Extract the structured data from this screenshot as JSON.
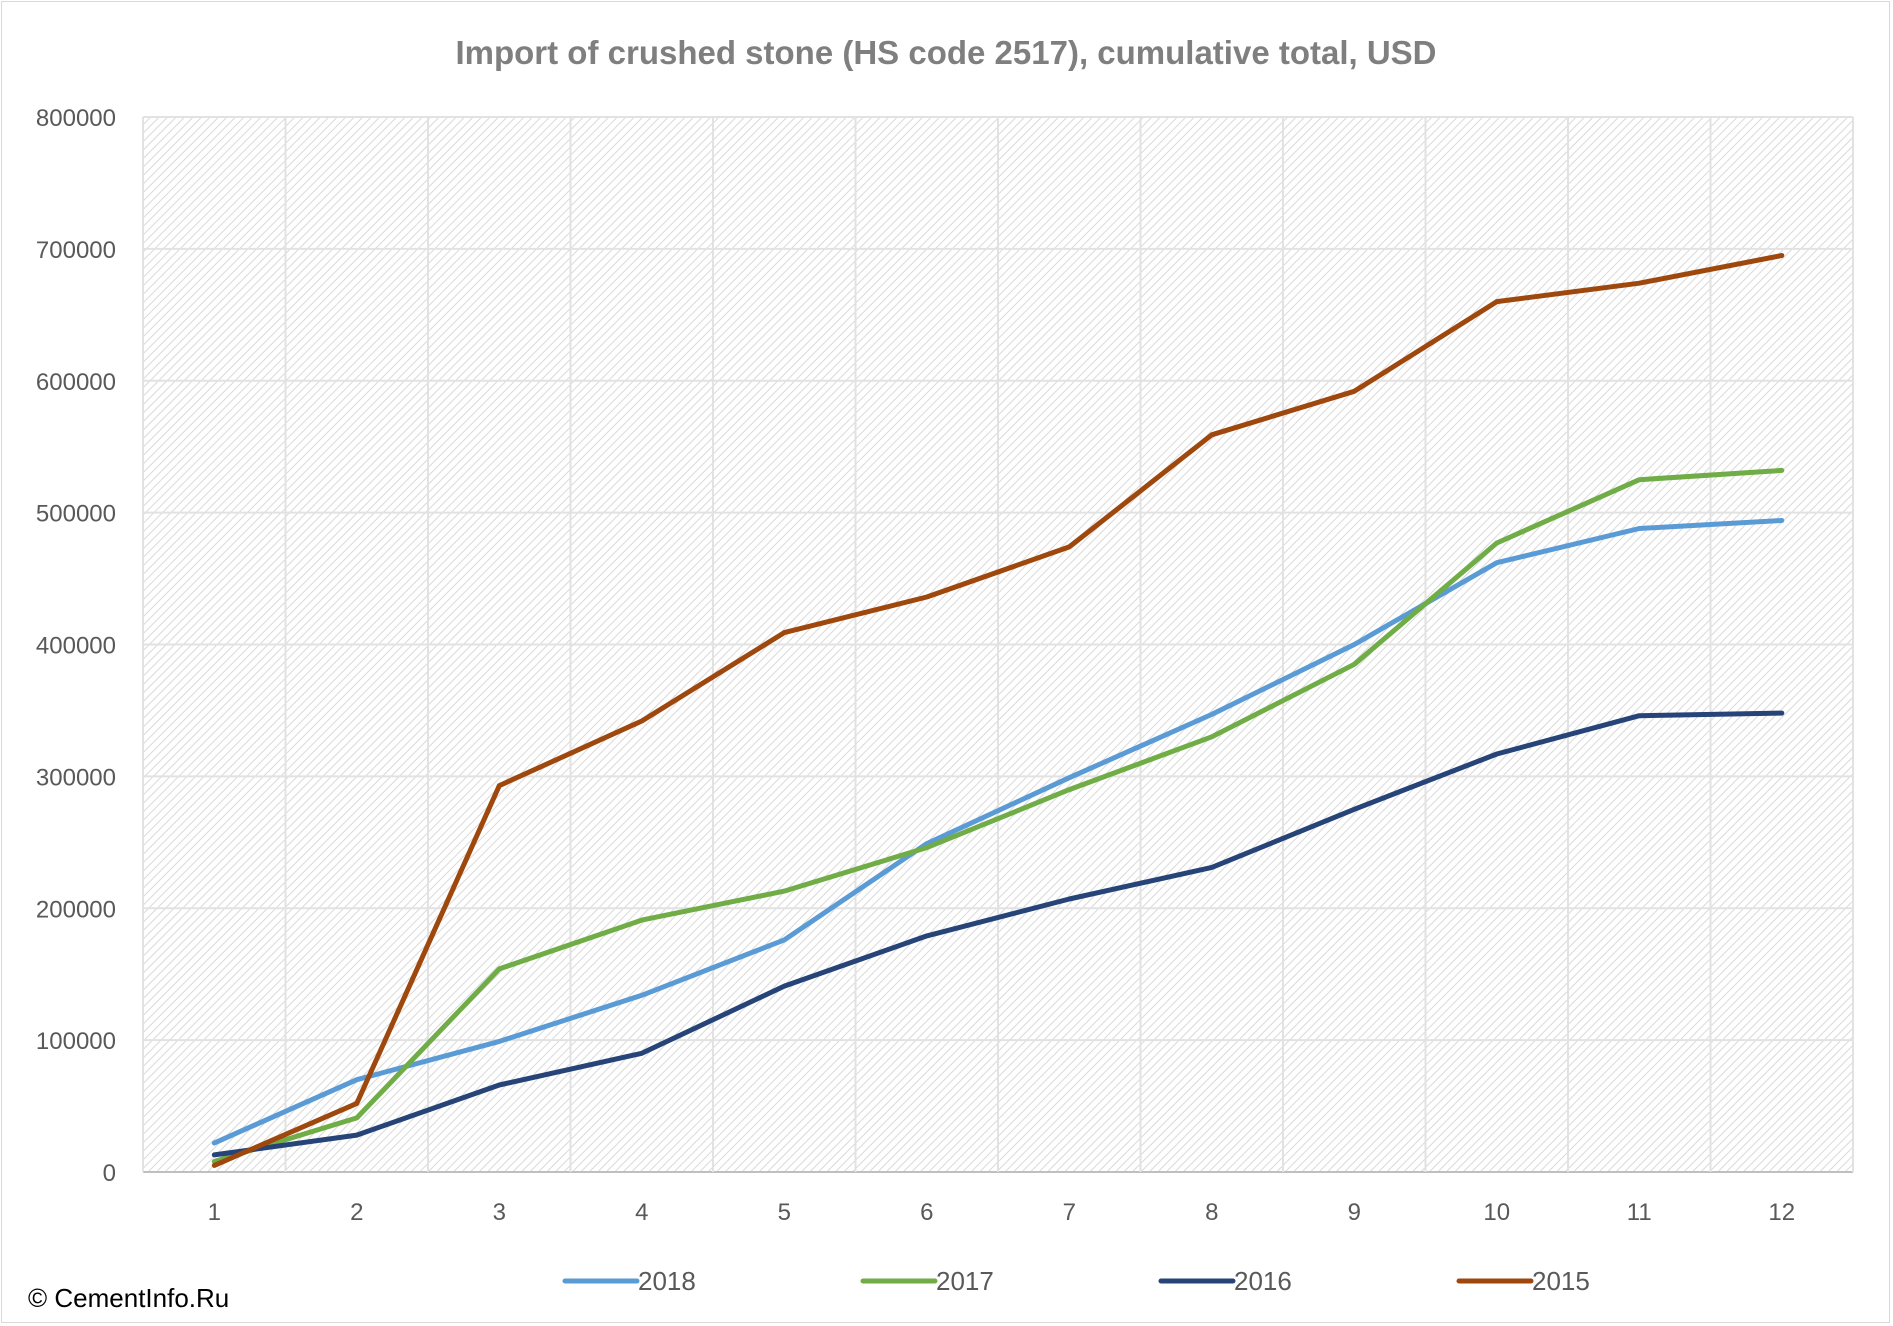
{
  "chart_data": {
    "type": "line",
    "title": "Import of crushed stone (HS code 2517), cumulative total, USD",
    "xlabel": "",
    "ylabel": "",
    "categories": [
      "1",
      "2",
      "3",
      "4",
      "5",
      "6",
      "7",
      "8",
      "9",
      "10",
      "11",
      "12"
    ],
    "y_ticks": [
      "0",
      "100000",
      "200000",
      "300000",
      "400000",
      "500000",
      "600000",
      "700000",
      "800000"
    ],
    "ylim": [
      0,
      800000
    ],
    "grid": true,
    "legend_position": "bottom",
    "series": [
      {
        "name": "2018",
        "color": "#5b9bd5",
        "values": [
          22000,
          70000,
          99000,
          134000,
          176000,
          249000,
          299000,
          347000,
          400000,
          462000,
          488000,
          494000
        ]
      },
      {
        "name": "2017",
        "color": "#70ad47",
        "values": [
          8000,
          41000,
          154000,
          191000,
          213000,
          246000,
          290000,
          330000,
          385000,
          477000,
          525000,
          532000
        ]
      },
      {
        "name": "2016",
        "color": "#264478",
        "values": [
          13000,
          28000,
          66000,
          90000,
          141000,
          179000,
          207000,
          231000,
          275000,
          317000,
          346000,
          348000
        ]
      },
      {
        "name": "2015",
        "color": "#9e480e",
        "values": [
          5000,
          52000,
          293000,
          342000,
          409000,
          436000,
          474000,
          559000,
          592000,
          660000,
          674000,
          695000
        ]
      }
    ]
  },
  "footer": {
    "copyright": "© CementInfo.Ru"
  }
}
